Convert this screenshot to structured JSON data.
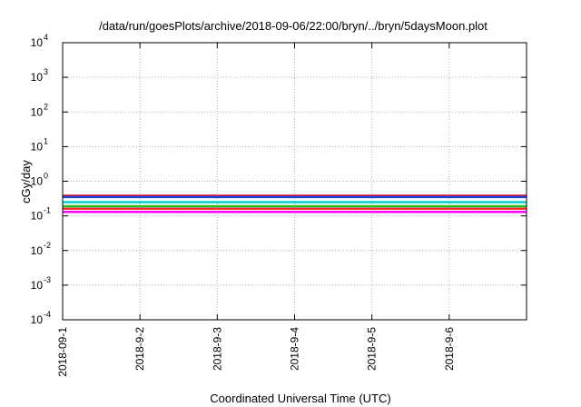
{
  "chart_data": {
    "type": "line",
    "title": "/data/run/goesPlots/archive/2018-09-06/22:00/bryn/../bryn/5daysMoon.plot",
    "xlabel": "Coordinated Universal Time (UTC)",
    "ylabel": "cGy/day",
    "yscale": "log",
    "ylim": [
      0.0001,
      10000
    ],
    "xlim": [
      "2018-09-01",
      "2018-09-07"
    ],
    "x_ticks": [
      "2018-09-1",
      "2018-9-2",
      "2018-9-3",
      "2018-9-4",
      "2018-9-5",
      "2018-9-6"
    ],
    "y_ticks": [
      {
        "base": "10",
        "exp": "-4"
      },
      {
        "base": "10",
        "exp": "-3"
      },
      {
        "base": "10",
        "exp": "-2"
      },
      {
        "base": "10",
        "exp": "-1"
      },
      {
        "base": "10",
        "exp": "0"
      },
      {
        "base": "10",
        "exp": "1"
      },
      {
        "base": "10",
        "exp": "2"
      },
      {
        "base": "10",
        "exp": "3"
      },
      {
        "base": "10",
        "exp": "4"
      }
    ],
    "grid": true,
    "series": [
      {
        "color": "#ff00ff",
        "x": [
          "2018-09-01",
          "2018-09-02",
          "2018-09-03",
          "2018-09-04",
          "2018-09-05",
          "2018-09-06",
          "2018-09-07"
        ],
        "values": [
          0.13,
          0.13,
          0.13,
          0.13,
          0.13,
          0.13,
          0.13
        ]
      },
      {
        "color": "#ff3030",
        "x": [
          "2018-09-01",
          "2018-09-02",
          "2018-09-03",
          "2018-09-04",
          "2018-09-05",
          "2018-09-06",
          "2018-09-07"
        ],
        "values": [
          0.16,
          0.16,
          0.16,
          0.16,
          0.16,
          0.16,
          0.16
        ]
      },
      {
        "color": "#20c020",
        "x": [
          "2018-09-01",
          "2018-09-02",
          "2018-09-03",
          "2018-09-04",
          "2018-09-05",
          "2018-09-06",
          "2018-09-07"
        ],
        "values": [
          0.19,
          0.19,
          0.19,
          0.19,
          0.19,
          0.19,
          0.19
        ]
      },
      {
        "color": "#00d0d0",
        "x": [
          "2018-09-01",
          "2018-09-02",
          "2018-09-03",
          "2018-09-04",
          "2018-09-05",
          "2018-09-06",
          "2018-09-07"
        ],
        "values": [
          0.25,
          0.25,
          0.25,
          0.25,
          0.25,
          0.25,
          0.25
        ]
      },
      {
        "color": "#e01010",
        "x": [
          "2018-09-01",
          "2018-09-02",
          "2018-09-03",
          "2018-09-04",
          "2018-09-05",
          "2018-09-06",
          "2018-09-07"
        ],
        "values": [
          0.38,
          0.38,
          0.38,
          0.38,
          0.38,
          0.38,
          0.38
        ]
      },
      {
        "color": "#2040e0",
        "x": [
          "2018-09-01",
          "2018-09-02",
          "2018-09-03",
          "2018-09-04",
          "2018-09-05",
          "2018-09-06",
          "2018-09-07"
        ],
        "values": [
          0.35,
          0.35,
          0.35,
          0.35,
          0.35,
          0.35,
          0.35
        ]
      }
    ]
  }
}
